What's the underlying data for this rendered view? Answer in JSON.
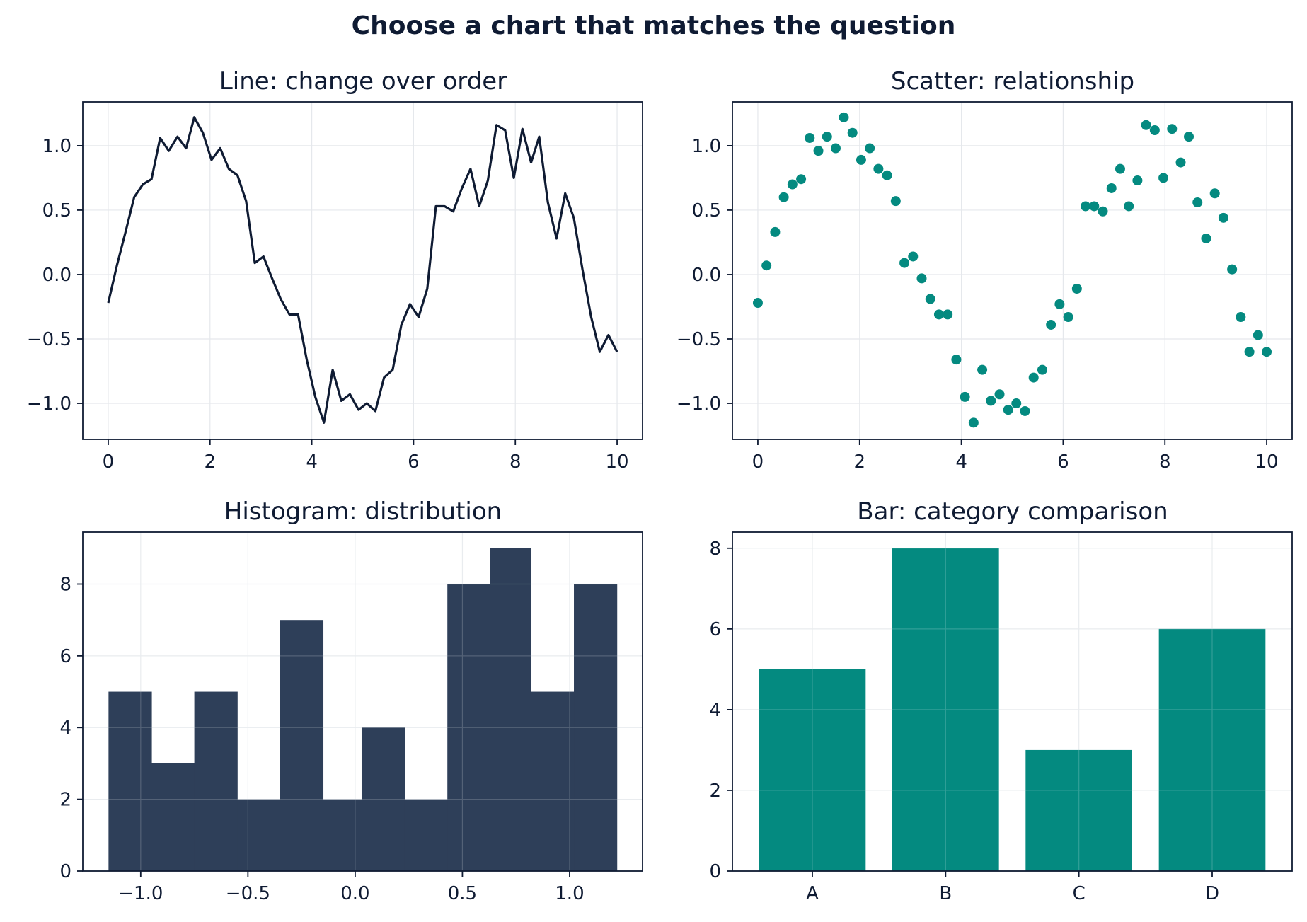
{
  "figure": {
    "title": "Choose a chart that matches the question"
  },
  "colors": {
    "ink": "#0f1b33",
    "teal": "#048a80",
    "slate": "#2e3f59",
    "grid": "#e5e8ec",
    "background": "#ffffff"
  },
  "chart_data": [
    {
      "type": "line",
      "title": "Line: change over order",
      "xlabel": "",
      "ylabel": "",
      "xlim": [
        -0.5,
        10.5
      ],
      "ylim": [
        -1.28,
        1.34
      ],
      "xticks": [
        0,
        2,
        4,
        6,
        8,
        10
      ],
      "xtick_labels": [
        "0",
        "2",
        "4",
        "6",
        "8",
        "10"
      ],
      "yticks": [
        -1.0,
        -0.5,
        0.0,
        0.5,
        1.0
      ],
      "ytick_labels": [
        "−1.0",
        "−0.5",
        "0.0",
        "0.5",
        "1.0"
      ],
      "grid": true,
      "color": "#0f1b33",
      "x": [
        0,
        0.17,
        0.34,
        0.51,
        0.68,
        0.85,
        1.02,
        1.19,
        1.36,
        1.53,
        1.69,
        1.86,
        2.03,
        2.2,
        2.37,
        2.54,
        2.71,
        2.88,
        3.05,
        3.22,
        3.39,
        3.56,
        3.73,
        3.9,
        4.07,
        4.24,
        4.41,
        4.58,
        4.75,
        4.92,
        5.08,
        5.25,
        5.42,
        5.59,
        5.76,
        5.93,
        6.1,
        6.27,
        6.44,
        6.61,
        6.78,
        6.95,
        7.12,
        7.29,
        7.46,
        7.63,
        7.8,
        7.97,
        8.14,
        8.31,
        8.47,
        8.64,
        8.81,
        8.98,
        9.15,
        9.32,
        9.49,
        9.66,
        9.83,
        10.0
      ],
      "y": [
        -0.22,
        0.07,
        0.33,
        0.6,
        0.7,
        0.74,
        1.06,
        0.96,
        1.07,
        0.98,
        1.22,
        1.1,
        0.89,
        0.98,
        0.82,
        0.77,
        0.57,
        0.09,
        0.14,
        -0.03,
        -0.19,
        -0.31,
        -0.31,
        -0.66,
        -0.95,
        -1.15,
        -0.74,
        -0.98,
        -0.93,
        -1.05,
        -1.0,
        -1.06,
        -0.8,
        -0.74,
        -0.39,
        -0.23,
        -0.33,
        -0.11,
        0.53,
        0.53,
        0.49,
        0.67,
        0.82,
        0.53,
        0.73,
        1.16,
        1.12,
        0.75,
        1.13,
        0.87,
        1.07,
        0.56,
        0.28,
        0.63,
        0.44,
        0.04,
        -0.33,
        -0.6,
        -0.47,
        -0.6
      ]
    },
    {
      "type": "scatter",
      "title": "Scatter: relationship",
      "xlabel": "",
      "ylabel": "",
      "xlim": [
        -0.5,
        10.5
      ],
      "ylim": [
        -1.28,
        1.34
      ],
      "xticks": [
        0,
        2,
        4,
        6,
        8,
        10
      ],
      "xtick_labels": [
        "0",
        "2",
        "4",
        "6",
        "8",
        "10"
      ],
      "yticks": [
        -1.0,
        -0.5,
        0.0,
        0.5,
        1.0
      ],
      "ytick_labels": [
        "−1.0",
        "−0.5",
        "0.0",
        "0.5",
        "1.0"
      ],
      "grid": true,
      "color": "#048a80",
      "x": [
        0,
        0.17,
        0.34,
        0.51,
        0.68,
        0.85,
        1.02,
        1.19,
        1.36,
        1.53,
        1.69,
        1.86,
        2.03,
        2.2,
        2.37,
        2.54,
        2.71,
        2.88,
        3.05,
        3.22,
        3.39,
        3.56,
        3.73,
        3.9,
        4.07,
        4.24,
        4.41,
        4.58,
        4.75,
        4.92,
        5.08,
        5.25,
        5.42,
        5.59,
        5.76,
        5.93,
        6.1,
        6.27,
        6.44,
        6.61,
        6.78,
        6.95,
        7.12,
        7.29,
        7.46,
        7.63,
        7.8,
        7.97,
        8.14,
        8.31,
        8.47,
        8.64,
        8.81,
        8.98,
        9.15,
        9.32,
        9.49,
        9.66,
        9.83,
        10.0
      ],
      "y": [
        -0.22,
        0.07,
        0.33,
        0.6,
        0.7,
        0.74,
        1.06,
        0.96,
        1.07,
        0.98,
        1.22,
        1.1,
        0.89,
        0.98,
        0.82,
        0.77,
        0.57,
        0.09,
        0.14,
        -0.03,
        -0.19,
        -0.31,
        -0.31,
        -0.66,
        -0.95,
        -1.15,
        -0.74,
        -0.98,
        -0.93,
        -1.05,
        -1.0,
        -1.06,
        -0.8,
        -0.74,
        -0.39,
        -0.23,
        -0.33,
        -0.11,
        0.53,
        0.53,
        0.49,
        0.67,
        0.82,
        0.53,
        0.73,
        1.16,
        1.12,
        0.75,
        1.13,
        0.87,
        1.07,
        0.56,
        0.28,
        0.63,
        0.44,
        0.04,
        -0.33,
        -0.6,
        -0.47,
        -0.6
      ]
    },
    {
      "type": "histogram",
      "title": "Histogram: distribution",
      "xlabel": "",
      "ylabel": "",
      "xlim": [
        -1.27,
        1.34
      ],
      "ylim": [
        0,
        9.45
      ],
      "xticks": [
        -1.0,
        -0.5,
        0.0,
        0.5,
        1.0
      ],
      "xtick_labels": [
        "−1.0",
        "−0.5",
        "0.0",
        "0.5",
        "1.0"
      ],
      "yticks": [
        0,
        2,
        4,
        6,
        8
      ],
      "ytick_labels": [
        "0",
        "2",
        "4",
        "6",
        "8"
      ],
      "grid": true,
      "color": "#2e3f59",
      "bin_edges": [
        -1.15,
        -0.95,
        -0.75,
        -0.55,
        -0.35,
        -0.15,
        0.03,
        0.23,
        0.43,
        0.63,
        0.82,
        1.02,
        1.22
      ],
      "counts": [
        5,
        3,
        5,
        2,
        7,
        2,
        4,
        2,
        8,
        9,
        5,
        8
      ]
    },
    {
      "type": "bar",
      "title": "Bar: category comparison",
      "xlabel": "",
      "ylabel": "",
      "xlim": [
        -0.6,
        3.6
      ],
      "ylim": [
        0,
        8.4
      ],
      "categories": [
        "A",
        "B",
        "C",
        "D"
      ],
      "values": [
        5,
        8,
        3,
        6
      ],
      "yticks": [
        0,
        2,
        4,
        6,
        8
      ],
      "ytick_labels": [
        "0",
        "2",
        "4",
        "6",
        "8"
      ],
      "grid": true,
      "color": "#048a80"
    }
  ]
}
